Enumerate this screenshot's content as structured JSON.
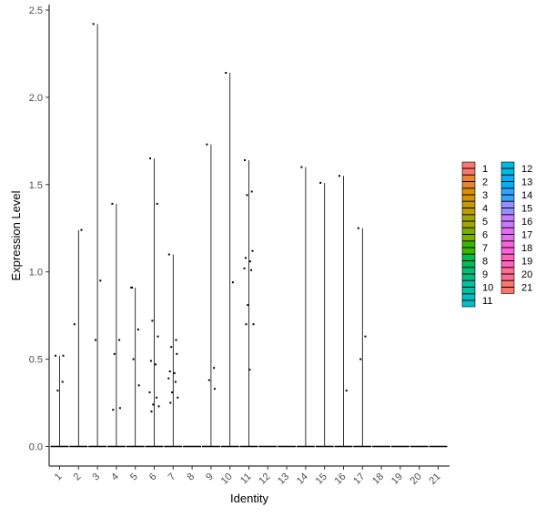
{
  "chart_data": {
    "type": "violin",
    "xlabel": "Identity",
    "ylabel": "Expression Level",
    "categories": [
      "1",
      "2",
      "3",
      "4",
      "5",
      "6",
      "7",
      "8",
      "9",
      "10",
      "11",
      "12",
      "13",
      "14",
      "15",
      "16",
      "17",
      "18",
      "19",
      "20",
      "21"
    ],
    "ylim": [
      -0.1,
      2.55
    ],
    "yticks": [
      0.0,
      0.5,
      1.0,
      1.5,
      2.0,
      2.5
    ],
    "ytick_labels": [
      "0.0",
      "0.5",
      "1.0",
      "1.5",
      "2.0",
      "2.5"
    ],
    "max_values": [
      0.52,
      1.24,
      2.42,
      1.39,
      0.91,
      1.65,
      1.1,
      0.0,
      1.73,
      2.14,
      1.64,
      0.0,
      0.0,
      1.6,
      1.51,
      1.55,
      1.25,
      0.0,
      0.0,
      0.0,
      0.0
    ],
    "points": [
      [
        0.52,
        0.37,
        0.32,
        0.52
      ],
      [
        0.7,
        1.24
      ],
      [
        2.42,
        0.95,
        0.61
      ],
      [
        1.39,
        0.61,
        0.53,
        0.22,
        0.21
      ],
      [
        0.91,
        0.67,
        0.5,
        0.35,
        0.91
      ],
      [
        1.65,
        1.39,
        0.72,
        0.63,
        0.49,
        0.47,
        0.31,
        0.28,
        0.24,
        0.23,
        0.2
      ],
      [
        1.1,
        0.61,
        0.57,
        0.53,
        0.43,
        0.42,
        0.39,
        0.37,
        0.31,
        0.28,
        0.25
      ],
      [],
      [
        1.73,
        0.45,
        0.38,
        0.33
      ],
      [
        2.14,
        0.94
      ],
      [
        1.64,
        1.46,
        1.44,
        1.12,
        1.08,
        1.06,
        1.02,
        1.01,
        0.81,
        0.7,
        0.7,
        0.44
      ],
      [],
      [],
      [
        1.6
      ],
      [
        1.51
      ],
      [
        1.55,
        0.32
      ],
      [
        1.25,
        0.63,
        0.5
      ],
      [],
      [],
      [],
      []
    ],
    "legend": {
      "placement": "right",
      "columns": [
        [
          "1",
          "2",
          "3",
          "4",
          "5",
          "6",
          "7",
          "8",
          "9",
          "10",
          "11"
        ],
        [
          "12",
          "13",
          "14",
          "15",
          "16",
          "17",
          "18",
          "19",
          "20",
          "21"
        ]
      ],
      "colors": {
        "1": "#F8766D",
        "2": "#EA8331",
        "3": "#D89000",
        "4": "#C09B00",
        "5": "#A3A500",
        "6": "#7CAE00",
        "7": "#39B600",
        "8": "#00BB4E",
        "9": "#00BF7D",
        "10": "#00C1A3",
        "11": "#00BFC4",
        "12": "#00BAE0",
        "13": "#00B0F6",
        "14": "#35A2FF",
        "15": "#9590FF",
        "16": "#C77CFF",
        "17": "#E76BF3",
        "18": "#FA62DB",
        "19": "#FF62BC",
        "20": "#FF6C91",
        "21": "#F8766D"
      }
    },
    "grid": false
  }
}
